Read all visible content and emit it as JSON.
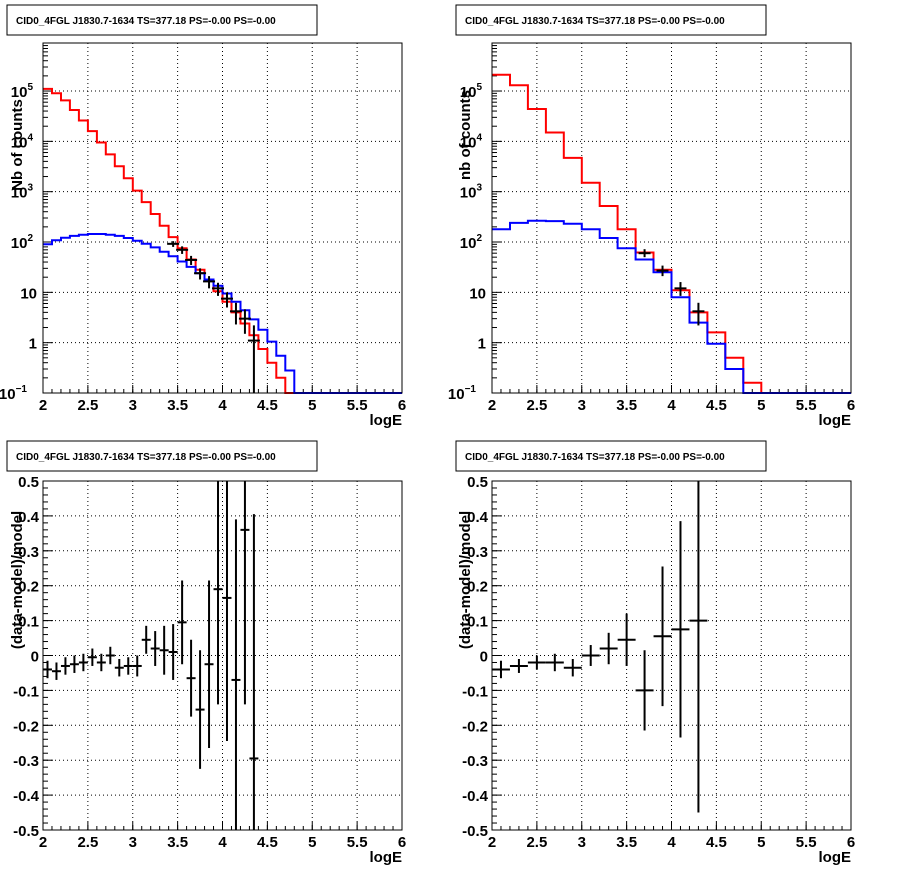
{
  "colors": {
    "data": "#000000",
    "total_model": "#ff0000",
    "source_model": "#0000ff"
  },
  "chart_data": [
    {
      "type": "line",
      "title": "CID0_4FGL J1830.7-1634 TS=377.18 PS=-0.00 PS=-0.00",
      "xlabel": "logE",
      "ylabel": "Nb of counts",
      "xlim": [
        2,
        6
      ],
      "ylim": [
        0.1,
        900000
      ],
      "yscale": "log",
      "grid": true,
      "xticks": [
        "2",
        "2.5",
        "3",
        "3.5",
        "4",
        "4.5",
        "5",
        "5.5",
        "6"
      ],
      "yticks": [
        {
          "v": 0.1,
          "m": "10",
          "e": "−1"
        },
        {
          "v": 1,
          "m": "1",
          "e": ""
        },
        {
          "v": 10,
          "m": "10",
          "e": ""
        },
        {
          "v": 100,
          "m": "10",
          "e": "2"
        },
        {
          "v": 1000,
          "m": "10",
          "e": "3"
        },
        {
          "v": 10000,
          "m": "10",
          "e": "4"
        },
        {
          "v": 100000,
          "m": "10",
          "e": "5"
        }
      ],
      "bin_edges": [
        2.0,
        2.1,
        2.2,
        2.3,
        2.4,
        2.5,
        2.6,
        2.7,
        2.8,
        2.9,
        3.0,
        3.1,
        3.2,
        3.3,
        3.4,
        3.5,
        3.6,
        3.7,
        3.8,
        3.9,
        4.0,
        4.1,
        4.2,
        4.3,
        4.4,
        4.5,
        4.6,
        4.7,
        4.8,
        4.9,
        5.0,
        5.1,
        5.2,
        5.3,
        5.4,
        5.5,
        5.6,
        5.7,
        5.8,
        5.9,
        6.0
      ],
      "series": [
        {
          "role": "total_model",
          "values": [
            110000,
            90000,
            65000,
            42000,
            26000,
            16000,
            9500,
            5500,
            3200,
            1850,
            1050,
            620,
            360,
            210,
            125,
            75,
            45,
            28,
            17,
            10.5,
            6.5,
            4,
            2.4,
            1.4,
            0.75,
            0.4,
            0.2,
            0.1,
            0.1,
            0.1,
            0.1,
            0.1,
            0.1,
            0.1,
            0.1,
            0.1,
            0.1,
            0.1,
            0.1,
            0.1
          ]
        },
        {
          "role": "source_model",
          "values": [
            90,
            108,
            122,
            132,
            140,
            144,
            144,
            140,
            132,
            120,
            106,
            92,
            78,
            64,
            52,
            41,
            32,
            24,
            18,
            13.5,
            9.5,
            6.5,
            4.4,
            2.9,
            1.8,
            1.05,
            0.55,
            0.28,
            0.1,
            0.1,
            0.1,
            0.1,
            0.1,
            0.1,
            0.1,
            0.1,
            0.1,
            0.1,
            0.1,
            0.1
          ]
        },
        {
          "role": "data",
          "points": [
            {
              "x": 3.45,
              "y": 92,
              "lo": 80,
              "hi": 104
            },
            {
              "x": 3.55,
              "y": 70,
              "lo": 58,
              "hi": 82
            },
            {
              "x": 3.65,
              "y": 44,
              "lo": 35,
              "hi": 53
            },
            {
              "x": 3.75,
              "y": 24,
              "lo": 18,
              "hi": 30
            },
            {
              "x": 3.85,
              "y": 16.5,
              "lo": 12,
              "hi": 21
            },
            {
              "x": 3.95,
              "y": 12,
              "lo": 8.5,
              "hi": 15.5
            },
            {
              "x": 4.05,
              "y": 7.5,
              "lo": 5,
              "hi": 10
            },
            {
              "x": 4.15,
              "y": 4.2,
              "lo": 2.3,
              "hi": 6.2
            },
            {
              "x": 4.25,
              "y": 3.0,
              "lo": 1.5,
              "hi": 4.6
            },
            {
              "x": 4.35,
              "y": 1.1,
              "lo": 0.1,
              "hi": 2.2
            }
          ]
        }
      ]
    },
    {
      "type": "line",
      "title": "CID0_4FGL J1830.7-1634 TS=377.18 PS=-0.00 PS=-0.00",
      "xlabel": "logE",
      "ylabel": "nb of counts",
      "xlim": [
        2,
        6
      ],
      "ylim": [
        0.1,
        900000
      ],
      "yscale": "log",
      "grid": true,
      "xticks": [
        "2",
        "2.5",
        "3",
        "3.5",
        "4",
        "4.5",
        "5",
        "5.5",
        "6"
      ],
      "yticks": [
        {
          "v": 0.1,
          "m": "10",
          "e": "−1"
        },
        {
          "v": 1,
          "m": "1",
          "e": ""
        },
        {
          "v": 10,
          "m": "10",
          "e": ""
        },
        {
          "v": 100,
          "m": "10",
          "e": "2"
        },
        {
          "v": 1000,
          "m": "10",
          "e": "3"
        },
        {
          "v": 10000,
          "m": "10",
          "e": "4"
        },
        {
          "v": 100000,
          "m": "10",
          "e": "5"
        }
      ],
      "bin_edges": [
        2.0,
        2.2,
        2.4,
        2.6,
        2.8,
        3.0,
        3.2,
        3.4,
        3.6,
        3.8,
        4.0,
        4.2,
        4.4,
        4.6,
        4.8,
        5.0,
        5.2,
        5.4,
        5.6,
        5.8,
        6.0
      ],
      "series": [
        {
          "role": "total_model",
          "values": [
            210000,
            130000,
            44000,
            15000,
            4700,
            1500,
            520,
            180,
            62,
            28,
            11,
            4,
            1.6,
            0.5,
            0.16,
            0.1,
            0.1,
            0.1,
            0.1,
            0.1
          ]
        },
        {
          "role": "source_model",
          "values": [
            180,
            240,
            265,
            260,
            230,
            180,
            120,
            75,
            45,
            25,
            8,
            2.5,
            0.95,
            0.3,
            0.1,
            0.1,
            0.1,
            0.1,
            0.1,
            0.1
          ]
        },
        {
          "role": "data",
          "points": [
            {
              "x": 3.7,
              "y": 60,
              "lo": 50,
              "hi": 72
            },
            {
              "x": 3.9,
              "y": 27,
              "lo": 21,
              "hi": 34
            },
            {
              "x": 4.1,
              "y": 12,
              "lo": 8.5,
              "hi": 16
            },
            {
              "x": 4.3,
              "y": 4.2,
              "lo": 2.2,
              "hi": 6.2
            }
          ]
        }
      ]
    },
    {
      "type": "scatter",
      "title": "CID0_4FGL J1830.7-1634 TS=377.18 PS=-0.00 PS=-0.00",
      "xlabel": "logE",
      "ylabel": "(data-model)/model",
      "xlim": [
        2,
        6
      ],
      "ylim": [
        -0.5,
        0.5
      ],
      "grid": true,
      "xticks": [
        "2",
        "2.5",
        "3",
        "3.5",
        "4",
        "4.5",
        "5",
        "5.5",
        "6"
      ],
      "yticks_num": [
        "0.5",
        "0.4",
        "0.3",
        "0.2",
        "0.1",
        "0",
        "-0.1",
        "-0.2",
        "-0.3",
        "-0.4",
        "-0.5"
      ],
      "points": [
        {
          "x": 2.05,
          "y": -0.04,
          "err": 0.025,
          "xerr": 0.05
        },
        {
          "x": 2.15,
          "y": -0.045,
          "err": 0.025,
          "xerr": 0.05
        },
        {
          "x": 2.25,
          "y": -0.03,
          "err": 0.025,
          "xerr": 0.05
        },
        {
          "x": 2.35,
          "y": -0.025,
          "err": 0.025,
          "xerr": 0.05
        },
        {
          "x": 2.45,
          "y": -0.02,
          "err": 0.025,
          "xerr": 0.05
        },
        {
          "x": 2.55,
          "y": -0.005,
          "err": 0.025,
          "xerr": 0.05
        },
        {
          "x": 2.65,
          "y": -0.02,
          "err": 0.025,
          "xerr": 0.05
        },
        {
          "x": 2.75,
          "y": 0.0,
          "err": 0.025,
          "xerr": 0.05
        },
        {
          "x": 2.85,
          "y": -0.035,
          "err": 0.025,
          "xerr": 0.05
        },
        {
          "x": 2.95,
          "y": -0.03,
          "err": 0.025,
          "xerr": 0.05
        },
        {
          "x": 3.05,
          "y": -0.03,
          "err": 0.03,
          "xerr": 0.05
        },
        {
          "x": 3.15,
          "y": 0.045,
          "err": 0.04,
          "xerr": 0.05
        },
        {
          "x": 3.25,
          "y": 0.02,
          "err": 0.05,
          "xerr": 0.05
        },
        {
          "x": 3.35,
          "y": 0.015,
          "err": 0.07,
          "xerr": 0.05
        },
        {
          "x": 3.45,
          "y": 0.01,
          "err": 0.08,
          "xerr": 0.05
        },
        {
          "x": 3.55,
          "y": 0.095,
          "err": 0.12,
          "xerr": 0.05
        },
        {
          "x": 3.65,
          "y": -0.065,
          "err": 0.11,
          "xerr": 0.05
        },
        {
          "x": 3.75,
          "y": -0.155,
          "err": 0.17,
          "xerr": 0.05
        },
        {
          "x": 3.85,
          "y": -0.025,
          "err": 0.24,
          "xerr": 0.05
        },
        {
          "x": 3.95,
          "y": 0.19,
          "err": 0.33,
          "xerr": 0.05
        },
        {
          "x": 4.05,
          "y": 0.165,
          "err": 0.41,
          "xerr": 0.05
        },
        {
          "x": 4.15,
          "y": -0.07,
          "err": 0.46,
          "xerr": 0.05
        },
        {
          "x": 4.25,
          "y": 0.36,
          "err": 0.5,
          "xerr": 0.05
        },
        {
          "x": 4.35,
          "y": -0.295,
          "err": 0.7,
          "xerr": 0.05
        }
      ]
    },
    {
      "type": "scatter",
      "title": "CID0_4FGL J1830.7-1634 TS=377.18 PS=-0.00 PS=-0.00",
      "xlabel": "logE",
      "ylabel": "(data-model)/model",
      "xlim": [
        2,
        6
      ],
      "ylim": [
        -0.5,
        0.5
      ],
      "grid": true,
      "xticks": [
        "2",
        "2.5",
        "3",
        "3.5",
        "4",
        "4.5",
        "5",
        "5.5",
        "6"
      ],
      "yticks_num": [
        "0.5",
        "0.4",
        "0.3",
        "0.2",
        "0.1",
        "0",
        "-0.1",
        "-0.2",
        "-0.3",
        "-0.4",
        "-0.5"
      ],
      "points": [
        {
          "x": 2.1,
          "y": -0.04,
          "err": 0.025,
          "xerr": 0.1
        },
        {
          "x": 2.3,
          "y": -0.03,
          "err": 0.02,
          "xerr": 0.1
        },
        {
          "x": 2.5,
          "y": -0.02,
          "err": 0.02,
          "xerr": 0.1
        },
        {
          "x": 2.7,
          "y": -0.02,
          "err": 0.025,
          "xerr": 0.1
        },
        {
          "x": 2.9,
          "y": -0.035,
          "err": 0.025,
          "xerr": 0.1
        },
        {
          "x": 3.1,
          "y": 0.0,
          "err": 0.03,
          "xerr": 0.1
        },
        {
          "x": 3.3,
          "y": 0.02,
          "err": 0.045,
          "xerr": 0.1
        },
        {
          "x": 3.5,
          "y": 0.045,
          "err": 0.075,
          "xerr": 0.1
        },
        {
          "x": 3.7,
          "y": -0.1,
          "err": 0.115,
          "xerr": 0.1
        },
        {
          "x": 3.9,
          "y": 0.055,
          "err": 0.2,
          "xerr": 0.1
        },
        {
          "x": 4.1,
          "y": 0.075,
          "err": 0.31,
          "xerr": 0.1
        },
        {
          "x": 4.3,
          "y": 0.1,
          "err": 0.55,
          "xerr": 0.1
        }
      ]
    }
  ]
}
